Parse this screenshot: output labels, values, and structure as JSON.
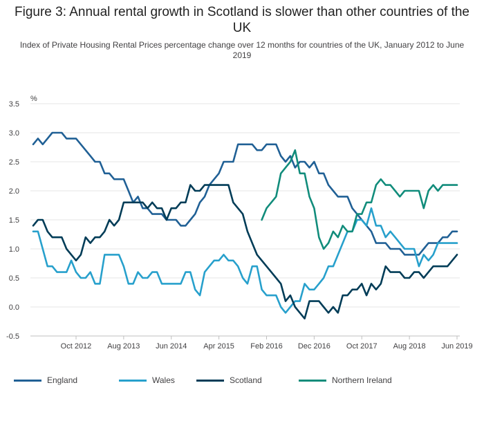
{
  "header": {
    "title": "Figure 3: Annual rental growth in Scotland is slower than other countries of the UK",
    "subtitle": "Index of Private Housing Rental Prices percentage change over 12 months for countries of the UK, January 2012 to June 2019"
  },
  "chart_data": {
    "type": "line",
    "title": "Figure 3: Annual rental growth in Scotland is slower than other countries of the UK",
    "subtitle": "Index of Private Housing Rental Prices percentage change over 12 months for countries of the UK, January 2012 to June 2019",
    "ylabel": "%",
    "xlabel": "",
    "ylim": [
      -0.5,
      3.5
    ],
    "yticks": [
      "3.5",
      "3.0",
      "2.5",
      "2.0",
      "1.5",
      "1.0",
      "0.5",
      "0.0",
      "-0.5"
    ],
    "xticks": [
      "Oct 2012",
      "Aug 2013",
      "Jun 2014",
      "Apr 2015",
      "Feb 2016",
      "Dec 2016",
      "Oct 2017",
      "Aug 2018",
      "Jun 2019"
    ],
    "x_start": "Jan 2012",
    "x_end": "Jun 2019",
    "grid": true,
    "legend_position": "bottom",
    "series": [
      {
        "name": "England",
        "color": "#206095",
        "values": [
          2.8,
          2.9,
          2.8,
          2.9,
          3.0,
          3.0,
          3.0,
          2.9,
          2.9,
          2.9,
          2.8,
          2.7,
          2.6,
          2.5,
          2.5,
          2.3,
          2.3,
          2.2,
          2.2,
          2.2,
          2.0,
          1.8,
          1.9,
          1.7,
          1.7,
          1.6,
          1.6,
          1.6,
          1.5,
          1.5,
          1.5,
          1.4,
          1.4,
          1.5,
          1.6,
          1.8,
          1.9,
          2.1,
          2.2,
          2.3,
          2.5,
          2.5,
          2.5,
          2.8,
          2.8,
          2.8,
          2.8,
          2.7,
          2.7,
          2.8,
          2.8,
          2.8,
          2.6,
          2.5,
          2.6,
          2.4,
          2.5,
          2.5,
          2.4,
          2.5,
          2.3,
          2.3,
          2.1,
          2.0,
          1.9,
          1.9,
          1.9,
          1.7,
          1.6,
          1.5,
          1.4,
          1.3,
          1.1,
          1.1,
          1.1,
          1.0,
          1.0,
          1.0,
          0.9,
          0.9,
          0.9,
          0.9,
          1.0,
          1.1,
          1.1,
          1.1,
          1.2,
          1.2,
          1.3,
          1.3
        ]
      },
      {
        "name": "Wales",
        "color": "#27a0cc",
        "values": [
          1.3,
          1.3,
          1.0,
          0.7,
          0.7,
          0.6,
          0.6,
          0.6,
          0.8,
          0.6,
          0.5,
          0.5,
          0.6,
          0.4,
          0.4,
          0.9,
          0.9,
          0.9,
          0.9,
          0.7,
          0.4,
          0.4,
          0.6,
          0.5,
          0.5,
          0.6,
          0.6,
          0.4,
          0.4,
          0.4,
          0.4,
          0.4,
          0.6,
          0.6,
          0.3,
          0.2,
          0.6,
          0.7,
          0.8,
          0.8,
          0.9,
          0.8,
          0.8,
          0.7,
          0.5,
          0.4,
          0.7,
          0.7,
          0.3,
          0.2,
          0.2,
          0.2,
          0.0,
          -0.1,
          0.0,
          0.1,
          0.1,
          0.4,
          0.3,
          0.3,
          0.4,
          0.5,
          0.7,
          0.7,
          0.9,
          1.1,
          1.3,
          1.3,
          1.5,
          1.5,
          1.4,
          1.7,
          1.4,
          1.4,
          1.2,
          1.3,
          1.2,
          1.1,
          1.0,
          1.0,
          1.0,
          0.7,
          0.9,
          0.8,
          0.9,
          1.1,
          1.1,
          1.1,
          1.1,
          1.1
        ]
      },
      {
        "name": "Scotland",
        "color": "#003c57",
        "values": [
          1.4,
          1.5,
          1.5,
          1.3,
          1.2,
          1.2,
          1.2,
          1.0,
          0.9,
          0.8,
          0.9,
          1.2,
          1.1,
          1.2,
          1.2,
          1.3,
          1.5,
          1.4,
          1.5,
          1.8,
          1.8,
          1.8,
          1.8,
          1.8,
          1.7,
          1.8,
          1.7,
          1.7,
          1.5,
          1.7,
          1.7,
          1.8,
          1.8,
          2.1,
          2.0,
          2.0,
          2.1,
          2.1,
          2.1,
          2.1,
          2.1,
          2.1,
          1.8,
          1.7,
          1.6,
          1.3,
          1.1,
          0.9,
          0.8,
          0.7,
          0.6,
          0.5,
          0.4,
          0.1,
          0.2,
          0.0,
          -0.1,
          -0.2,
          0.1,
          0.1,
          0.1,
          0.0,
          -0.1,
          0.0,
          -0.1,
          0.2,
          0.2,
          0.3,
          0.3,
          0.4,
          0.2,
          0.4,
          0.3,
          0.4,
          0.7,
          0.6,
          0.6,
          0.6,
          0.5,
          0.5,
          0.6,
          0.6,
          0.5,
          0.6,
          0.7,
          0.7,
          0.7,
          0.7,
          0.8,
          0.9
        ]
      },
      {
        "name": "Northern Ireland",
        "color": "#118c7b",
        "start_index": 48,
        "values": [
          1.5,
          1.7,
          1.8,
          1.9,
          2.3,
          2.4,
          2.5,
          2.7,
          2.3,
          2.3,
          1.9,
          1.7,
          1.2,
          1.0,
          1.1,
          1.3,
          1.2,
          1.4,
          1.3,
          1.3,
          1.6,
          1.6,
          1.8,
          1.8,
          2.1,
          2.2,
          2.1,
          2.1,
          2.0,
          1.9,
          2.0,
          2.0,
          2.0,
          2.0,
          1.7,
          2.0,
          2.1,
          2.0,
          2.1,
          2.1,
          2.1,
          2.1
        ]
      }
    ]
  }
}
